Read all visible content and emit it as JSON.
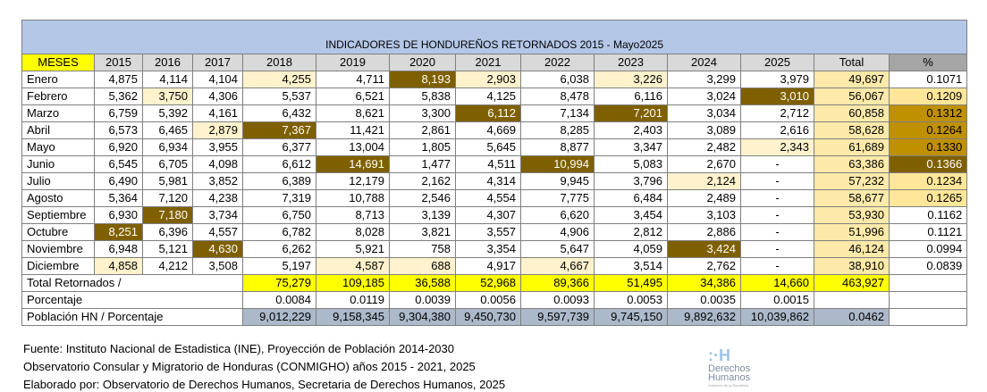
{
  "title": "INDICADORES DE HONDUREÑOS RETORNADOS 2015 - Mayo2025",
  "header": [
    "MESES",
    "2015",
    "2016",
    "2017",
    "2018",
    "2019",
    "2020",
    "2021",
    "2022",
    "2023",
    "2024",
    "2025",
    "Total",
    "%"
  ],
  "rows": [
    [
      "Enero",
      "4,875",
      "4,114",
      "4,104",
      "4,255",
      "4,711",
      "8,193",
      "2,903",
      "6,038",
      "3,226",
      "3,299",
      "3,979",
      "49,697",
      "0.1071"
    ],
    [
      "Febrero",
      "5,362",
      "3,750",
      "4,306",
      "5,537",
      "6,521",
      "5,838",
      "4,125",
      "8,478",
      "6,116",
      "3,024",
      "3,010",
      "56,067",
      "0.1209"
    ],
    [
      "Marzo",
      "6,759",
      "5,392",
      "4,161",
      "6,432",
      "8,621",
      "3,300",
      "6,112",
      "7,134",
      "7,201",
      "3,034",
      "2,712",
      "60,858",
      "0.1312"
    ],
    [
      "Abril",
      "6,573",
      "6,465",
      "2,879",
      "7,367",
      "11,421",
      "2,861",
      "4,669",
      "8,285",
      "2,403",
      "3,089",
      "2,616",
      "58,628",
      "0.1264"
    ],
    [
      "Mayo",
      "6,920",
      "6,934",
      "3,955",
      "6,377",
      "13,004",
      "1,805",
      "5,645",
      "8,877",
      "3,347",
      "2,482",
      "2,343",
      "61,689",
      "0.1330"
    ],
    [
      "Junio",
      "6,545",
      "6,705",
      "4,098",
      "6,612",
      "14,691",
      "1,477",
      "4,511",
      "10,994",
      "5,083",
      "2,670",
      "-",
      "63,386",
      "0.1366"
    ],
    [
      "Julio",
      "6,490",
      "5,981",
      "3,852",
      "6,389",
      "12,179",
      "2,162",
      "4,314",
      "9,945",
      "3,796",
      "2,124",
      "-",
      "57,232",
      "0.1234"
    ],
    [
      "Agosto",
      "5,364",
      "7,120",
      "4,238",
      "7,319",
      "10,788",
      "2,546",
      "4,554",
      "7,775",
      "6,484",
      "2,489",
      "-",
      "58,677",
      "0.1265"
    ],
    [
      "Septiembre",
      "6,930",
      "7,180",
      "3,734",
      "6,750",
      "8,713",
      "3,139",
      "4,307",
      "6,620",
      "3,454",
      "3,103",
      "-",
      "53,930",
      "0.1162"
    ],
    [
      "Octubre",
      "8,251",
      "6,396",
      "4,557",
      "6,782",
      "8,028",
      "3,821",
      "3,557",
      "4,906",
      "2,812",
      "2,886",
      "-",
      "51,996",
      "0.1121"
    ],
    [
      "Noviembre",
      "6,948",
      "5,121",
      "4,630",
      "6,262",
      "5,921",
      "758",
      "3,354",
      "5,647",
      "4,059",
      "3,424",
      "-",
      "46,124",
      "0.0994"
    ],
    [
      "Diciembre",
      "4,858",
      "4,212",
      "3,508",
      "5,197",
      "4,587",
      "688",
      "4,917",
      "4,667",
      "3,514",
      "2,762",
      "-",
      "38,910",
      "0.0839"
    ]
  ],
  "total_row": {
    "label": "Total Retornados /",
    "values": [
      "75,279",
      "109,185",
      "36,588",
      "52,968",
      "89,366",
      "51,495",
      "34,386",
      "14,660",
      "463,927"
    ]
  },
  "pct_row": {
    "label": "Porcentaje",
    "values": [
      "0.0084",
      "0.0119",
      "0.0039",
      "0.0056",
      "0.0093",
      "0.0053",
      "0.0035",
      "0.0015"
    ]
  },
  "pop_row": {
    "label": "Población HN / Porcentaje",
    "values": [
      "9,012,229",
      "9,158,345",
      "9,304,380",
      "9,450,730",
      "9,597,739",
      "9,745,150",
      "9,892,632",
      "10,039,862",
      "0.0462"
    ]
  },
  "footer": [
    "Fuente: Instituto Nacional de Estadistica (INE), Proyección de Población 2014-2030",
    "Observatorio Consular y Migratorio de Honduras (CONMIGHO) años 2015 - 2021, 2025",
    "Elaborado por: Observatorio de Derechos Humanos, Secretaria de Derechos Humanos, 2025"
  ],
  "logo": {
    "icon": ":·H",
    "line1": "Derechos",
    "line2": "Humanos",
    "sub": "Gobierno de la República"
  },
  "colors": {
    "title_bg": "#b4c7e7",
    "header_bg": "#d9d9d9",
    "meses_bg": "#ffff00",
    "highlight_light": "#fff2cc",
    "highlight_mid": "#ffe699",
    "highlight_gold": "#bf9000",
    "highlight_dark": "#7f6000"
  }
}
